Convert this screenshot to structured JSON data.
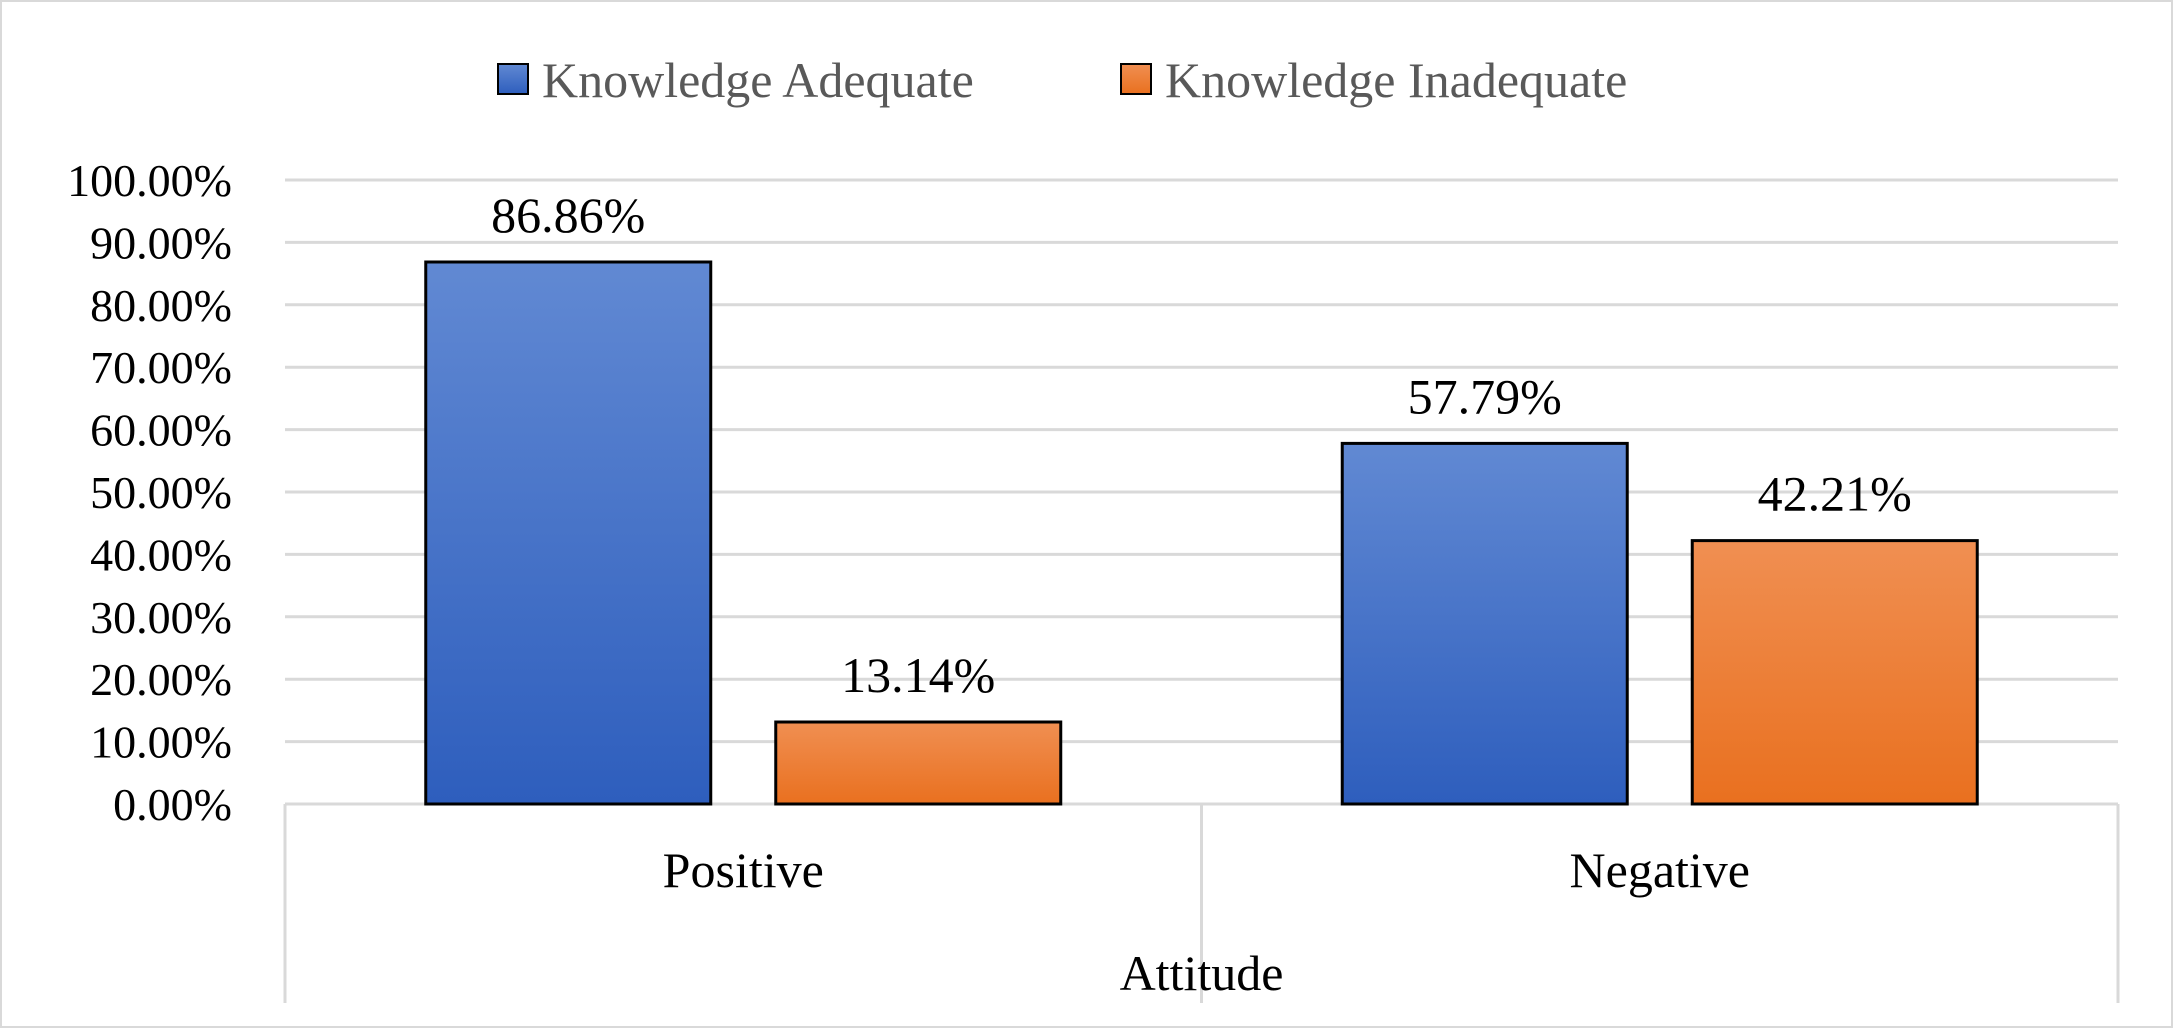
{
  "chart_data": {
    "type": "bar",
    "categories": [
      "Positive",
      "Negative"
    ],
    "xlabel": "Attitude",
    "ylabel": "",
    "ylim": [
      0,
      100
    ],
    "y_ticks": [
      "0.00%",
      "10.00%",
      "20.00%",
      "30.00%",
      "40.00%",
      "50.00%",
      "60.00%",
      "70.00%",
      "80.00%",
      "90.00%",
      "100.00%"
    ],
    "grid": true,
    "legend_position": "top-center",
    "series": [
      {
        "name": "Knowledge Adequate",
        "values": [
          86.86,
          57.79
        ],
        "labels": [
          "86.86%",
          "57.79%"
        ],
        "color": "#4472C4"
      },
      {
        "name": "Knowledge Inadequate",
        "values": [
          13.14,
          42.21
        ],
        "labels": [
          "13.14%",
          "42.21%"
        ],
        "color": "#ED7D31"
      }
    ]
  }
}
